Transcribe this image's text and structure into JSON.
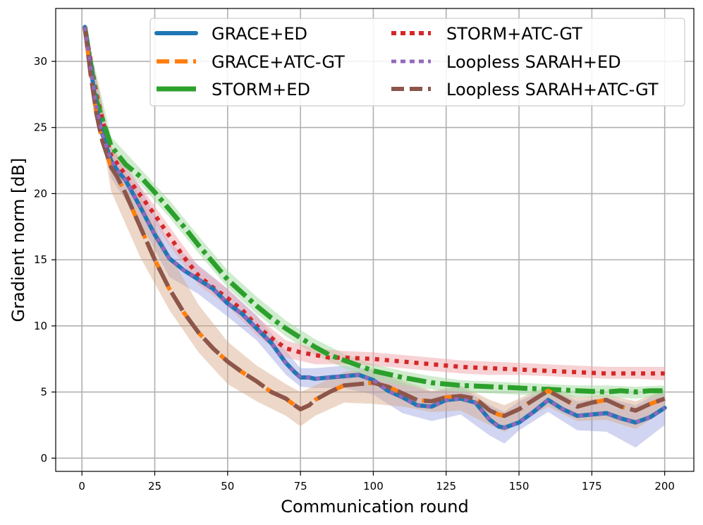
{
  "chart_data": {
    "type": "line",
    "title": "",
    "xlabel": "Communication round",
    "ylabel": "Gradient norm [dB]",
    "xlim": [
      -9,
      210
    ],
    "ylim": [
      -1,
      34
    ],
    "xticks": [
      0,
      25,
      50,
      75,
      100,
      125,
      150,
      175,
      200
    ],
    "yticks": [
      0,
      5,
      10,
      15,
      20,
      25,
      30
    ],
    "grid": true,
    "legend_position": "top-right",
    "bands": [
      {
        "name": "GRACE band",
        "color": "#7b86d6",
        "opacity": 0.35,
        "x": [
          1,
          10,
          20,
          30,
          40,
          50,
          60,
          70,
          75,
          80,
          90,
          100,
          110,
          120,
          130,
          140,
          145,
          150,
          160,
          170,
          180,
          190,
          200
        ],
        "upper": [
          32.8,
          23.5,
          20.5,
          16.3,
          14.6,
          12.8,
          10.8,
          8.1,
          6.8,
          6.8,
          7.0,
          6.7,
          5.7,
          5.0,
          5.4,
          4.0,
          3.5,
          4.3,
          5.3,
          4.3,
          4.6,
          4.0,
          5.2
        ],
        "lower": [
          32.4,
          21.2,
          17.8,
          13.7,
          12.4,
          10.7,
          8.9,
          6.3,
          5.4,
          5.3,
          5.3,
          4.8,
          3.4,
          2.8,
          3.3,
          1.7,
          1.1,
          2.1,
          3.5,
          2.1,
          2.0,
          0.8,
          2.5
        ]
      },
      {
        "name": "ATC-GT band",
        "color": "#d8a784",
        "opacity": 0.45,
        "x": [
          1,
          10,
          20,
          30,
          40,
          50,
          60,
          70,
          75,
          80,
          90,
          100,
          110,
          120,
          130,
          140,
          145,
          150,
          160,
          170,
          180,
          190,
          200
        ],
        "upper": [
          32.8,
          23.5,
          19.8,
          15.4,
          11.6,
          8.8,
          7.0,
          5.6,
          5.0,
          5.5,
          6.5,
          6.8,
          5.9,
          5.1,
          5.5,
          4.4,
          4.0,
          4.5,
          5.5,
          4.6,
          4.8,
          4.3,
          5.2
        ],
        "lower": [
          32.4,
          20.2,
          15.2,
          11.2,
          8.0,
          5.6,
          4.3,
          3.2,
          2.4,
          3.2,
          4.2,
          4.1,
          3.9,
          3.5,
          3.6,
          2.5,
          2.0,
          2.7,
          3.9,
          2.8,
          2.9,
          2.2,
          3.6
        ]
      },
      {
        "name": "STORM+ED band",
        "color": "#a9dca6",
        "opacity": 0.55,
        "x": [
          1,
          10,
          20,
          30,
          40,
          50,
          60,
          70,
          80,
          90,
          100,
          110,
          120,
          130,
          140,
          150,
          160,
          170,
          180,
          190,
          200
        ],
        "upper": [
          32.8,
          24.3,
          21.9,
          19.5,
          16.8,
          14.2,
          12.2,
          10.4,
          9.0,
          7.9,
          7.1,
          6.6,
          6.2,
          5.9,
          5.8,
          5.7,
          5.6,
          5.5,
          5.5,
          5.4,
          5.5
        ],
        "lower": [
          32.4,
          22.9,
          20.7,
          18.2,
          15.5,
          12.9,
          10.9,
          9.2,
          7.8,
          6.8,
          6.0,
          5.5,
          5.2,
          5.0,
          4.9,
          4.8,
          4.7,
          4.6,
          4.6,
          4.5,
          4.7
        ]
      },
      {
        "name": "STORM+ATC-GT band",
        "color": "#f0a6a9",
        "opacity": 0.5,
        "x": [
          1,
          10,
          20,
          30,
          40,
          50,
          60,
          70,
          80,
          90,
          100,
          110,
          120,
          130,
          140,
          150,
          160,
          170,
          180,
          190,
          200
        ],
        "upper": [
          32.8,
          23.6,
          20.6,
          17.5,
          14.5,
          12.8,
          10.7,
          8.9,
          8.3,
          8.1,
          8.0,
          7.8,
          7.6,
          7.4,
          7.3,
          7.2,
          7.1,
          7.0,
          6.9,
          6.9,
          6.9
        ],
        "lower": [
          32.4,
          22.2,
          19.2,
          16.1,
          13.1,
          11.5,
          9.3,
          7.6,
          7.1,
          7.1,
          7.0,
          6.8,
          6.6,
          6.4,
          6.3,
          6.3,
          6.2,
          6.1,
          6.0,
          6.0,
          5.9
        ]
      }
    ],
    "series": [
      {
        "name": "GRACE+ED",
        "color": "#1f77b4",
        "style": "solid",
        "x": [
          1,
          3,
          5,
          7,
          10,
          12,
          15,
          20,
          25,
          30,
          35,
          40,
          45,
          50,
          55,
          60,
          65,
          70,
          73,
          75,
          78,
          80,
          85,
          90,
          95,
          100,
          105,
          110,
          115,
          120,
          125,
          130,
          135,
          140,
          143,
          145,
          150,
          155,
          160,
          165,
          170,
          175,
          180,
          185,
          190,
          195,
          200
        ],
        "values": [
          32.6,
          29.5,
          26.5,
          24.5,
          22.5,
          21.8,
          21.0,
          19.0,
          16.9,
          15.1,
          14.2,
          13.5,
          12.8,
          11.7,
          10.9,
          9.8,
          8.7,
          7.2,
          6.5,
          6.1,
          6.1,
          6.0,
          6.1,
          6.2,
          6.3,
          5.9,
          5.1,
          4.6,
          4.0,
          3.9,
          4.4,
          4.5,
          4.2,
          2.9,
          2.4,
          2.3,
          2.7,
          3.5,
          4.4,
          3.7,
          3.2,
          3.3,
          3.4,
          3.0,
          2.7,
          3.1,
          3.8
        ]
      },
      {
        "name": "GRACE+ATC-GT",
        "color": "#ff7f0e",
        "style": "dashed",
        "x": [
          1,
          3,
          5,
          7,
          10,
          12,
          15,
          20,
          25,
          30,
          35,
          40,
          45,
          50,
          55,
          60,
          65,
          70,
          73,
          75,
          78,
          80,
          85,
          90,
          95,
          100,
          105,
          110,
          115,
          120,
          125,
          130,
          135,
          140,
          143,
          145,
          150,
          155,
          160,
          165,
          170,
          175,
          180,
          185,
          190,
          195,
          200
        ],
        "values": [
          32.6,
          29.0,
          26.0,
          24.0,
          22.0,
          21.3,
          20.0,
          17.5,
          15.0,
          12.8,
          11.0,
          9.5,
          8.3,
          7.3,
          6.5,
          5.8,
          5.0,
          4.5,
          4.0,
          3.7,
          4.0,
          4.4,
          5.0,
          5.5,
          5.6,
          5.7,
          5.4,
          4.9,
          4.4,
          4.3,
          4.6,
          4.7,
          4.5,
          3.6,
          3.3,
          3.2,
          3.7,
          4.4,
          5.1,
          4.5,
          3.9,
          4.2,
          4.4,
          3.9,
          3.6,
          4.1,
          4.5
        ]
      },
      {
        "name": "STORM+ED",
        "color": "#2ca02c",
        "style": "dashdot",
        "x": [
          1,
          5,
          10,
          15,
          20,
          25,
          30,
          35,
          40,
          45,
          50,
          55,
          60,
          65,
          70,
          75,
          80,
          85,
          90,
          95,
          100,
          110,
          120,
          130,
          140,
          150,
          160,
          170,
          180,
          185,
          190,
          195,
          200
        ],
        "values": [
          32.6,
          27.0,
          23.6,
          22.2,
          21.3,
          20.1,
          18.8,
          17.5,
          16.1,
          14.8,
          13.5,
          12.5,
          11.5,
          10.6,
          9.8,
          9.1,
          8.4,
          7.8,
          7.4,
          7.0,
          6.6,
          6.1,
          5.7,
          5.5,
          5.4,
          5.3,
          5.2,
          5.1,
          5.0,
          5.1,
          5.0,
          5.1,
          5.1
        ]
      },
      {
        "name": "STORM+ATC-GT",
        "color": "#d62728",
        "style": "dotted",
        "x": [
          1,
          5,
          10,
          15,
          20,
          25,
          30,
          35,
          40,
          45,
          50,
          55,
          60,
          65,
          70,
          75,
          80,
          85,
          90,
          100,
          110,
          120,
          130,
          140,
          150,
          160,
          170,
          180,
          190,
          200
        ],
        "values": [
          32.6,
          27.5,
          22.9,
          21.4,
          19.9,
          18.4,
          16.8,
          15.2,
          13.8,
          12.9,
          12.1,
          11.2,
          10.0,
          9.1,
          8.3,
          8.0,
          7.8,
          7.6,
          7.6,
          7.5,
          7.3,
          7.1,
          6.9,
          6.8,
          6.7,
          6.6,
          6.5,
          6.4,
          6.4,
          6.4
        ]
      },
      {
        "name": "Loopless SARAH+ED",
        "color": "#9467bd",
        "style": "dotted",
        "x": [
          1,
          3,
          5,
          7,
          10,
          12,
          15,
          20,
          25,
          30,
          35,
          40,
          45,
          50,
          55,
          60,
          65,
          70,
          73,
          75,
          78,
          80,
          85,
          90,
          95,
          100,
          105,
          110,
          115,
          120,
          125,
          130,
          135,
          140,
          143,
          145,
          150,
          155,
          160,
          165,
          170,
          175,
          180,
          185,
          190,
          195,
          200
        ],
        "values": [
          32.6,
          29.5,
          26.5,
          24.5,
          22.5,
          21.8,
          21.0,
          19.0,
          16.9,
          15.1,
          14.2,
          13.5,
          12.8,
          11.7,
          10.9,
          9.8,
          8.7,
          7.2,
          6.5,
          6.1,
          6.1,
          6.0,
          6.1,
          6.2,
          6.3,
          5.9,
          5.1,
          4.6,
          4.0,
          3.9,
          4.4,
          4.5,
          4.2,
          2.9,
          2.4,
          2.3,
          2.7,
          3.5,
          4.4,
          3.7,
          3.2,
          3.3,
          3.4,
          3.0,
          2.7,
          3.1,
          3.8
        ]
      },
      {
        "name": "Loopless SARAH+ATC-GT",
        "color": "#8c564b",
        "style": "longdash",
        "x": [
          1,
          3,
          5,
          7,
          10,
          12,
          15,
          20,
          25,
          30,
          35,
          40,
          45,
          50,
          55,
          60,
          65,
          70,
          73,
          75,
          78,
          80,
          85,
          90,
          95,
          100,
          105,
          110,
          115,
          120,
          125,
          130,
          135,
          140,
          143,
          145,
          150,
          155,
          160,
          165,
          170,
          175,
          180,
          185,
          190,
          195,
          200
        ],
        "values": [
          32.6,
          29.0,
          26.0,
          24.0,
          22.0,
          21.3,
          20.0,
          17.5,
          15.0,
          12.8,
          11.0,
          9.5,
          8.3,
          7.3,
          6.5,
          5.8,
          5.0,
          4.5,
          4.0,
          3.7,
          4.0,
          4.4,
          5.0,
          5.5,
          5.6,
          5.7,
          5.4,
          4.9,
          4.4,
          4.3,
          4.6,
          4.7,
          4.5,
          3.6,
          3.3,
          3.2,
          3.7,
          4.4,
          5.1,
          4.5,
          3.9,
          4.2,
          4.4,
          3.9,
          3.6,
          4.1,
          4.5
        ]
      }
    ],
    "legend": [
      [
        "GRACE+ED",
        "STORM+ATC-GT"
      ],
      [
        "GRACE+ATC-GT",
        "Loopless SARAH+ED"
      ],
      [
        "STORM+ED",
        "Loopless SARAH+ATC-GT"
      ]
    ]
  }
}
